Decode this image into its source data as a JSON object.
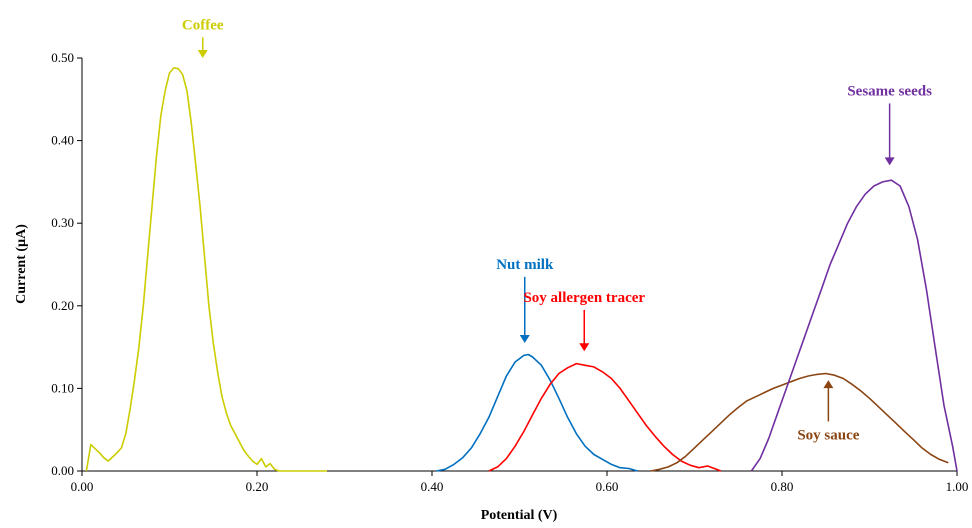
{
  "chart_data": {
    "type": "line",
    "xlabel": "Potential (V)",
    "ylabel": "Current (µA)",
    "xlim": [
      0,
      1
    ],
    "ylim": [
      0,
      0.5
    ],
    "x_ticks": [
      "0.00",
      "0.20",
      "0.40",
      "0.60",
      "0.80",
      "1.00"
    ],
    "x_tick_values": [
      0,
      0.2,
      0.4,
      0.6,
      0.8,
      1.0
    ],
    "y_ticks": [
      "0.00",
      "0.10",
      "0.20",
      "0.30",
      "0.40",
      "0.50"
    ],
    "y_tick_values": [
      0,
      0.1,
      0.2,
      0.3,
      0.4,
      0.5
    ],
    "grid": false,
    "legend": "none",
    "series": [
      {
        "name": "Coffee",
        "color": "#CCCC00",
        "x": [
          0.005,
          0.01,
          0.015,
          0.02,
          0.025,
          0.03,
          0.035,
          0.04,
          0.045,
          0.05,
          0.055,
          0.06,
          0.065,
          0.07,
          0.075,
          0.08,
          0.085,
          0.09,
          0.095,
          0.1,
          0.105,
          0.11,
          0.115,
          0.12,
          0.125,
          0.13,
          0.135,
          0.14,
          0.145,
          0.15,
          0.155,
          0.16,
          0.165,
          0.17,
          0.175,
          0.18,
          0.185,
          0.19,
          0.195,
          0.2,
          0.205,
          0.21,
          0.215,
          0.22,
          0.225,
          0.23,
          0.235,
          0.24,
          0.245,
          0.25,
          0.255,
          0.26,
          0.265,
          0.27,
          0.275,
          0.28
        ],
        "y": [
          0.0,
          0.032,
          0.027,
          0.022,
          0.016,
          0.012,
          0.017,
          0.022,
          0.028,
          0.045,
          0.075,
          0.11,
          0.15,
          0.2,
          0.26,
          0.32,
          0.38,
          0.43,
          0.46,
          0.482,
          0.488,
          0.487,
          0.48,
          0.46,
          0.42,
          0.37,
          0.32,
          0.26,
          0.2,
          0.155,
          0.12,
          0.09,
          0.07,
          0.055,
          0.045,
          0.035,
          0.025,
          0.018,
          0.012,
          0.008,
          0.015,
          0.005,
          0.009,
          0.002,
          0.0,
          0.0,
          0.0,
          0.0,
          0.0,
          0.0,
          0.0,
          0.0,
          0.0,
          0.0,
          0.0,
          0.0
        ]
      },
      {
        "name": "Nut milk",
        "color": "#0070C0",
        "x": [
          0.405,
          0.415,
          0.425,
          0.435,
          0.445,
          0.455,
          0.465,
          0.475,
          0.485,
          0.495,
          0.505,
          0.51,
          0.515,
          0.525,
          0.535,
          0.545,
          0.555,
          0.565,
          0.575,
          0.585,
          0.595,
          0.605,
          0.615,
          0.625,
          0.635
        ],
        "y": [
          0.0,
          0.002,
          0.008,
          0.016,
          0.028,
          0.045,
          0.065,
          0.09,
          0.115,
          0.132,
          0.14,
          0.141,
          0.138,
          0.128,
          0.11,
          0.088,
          0.065,
          0.045,
          0.03,
          0.02,
          0.014,
          0.008,
          0.004,
          0.003,
          0.0
        ]
      },
      {
        "name": "Soy allergen tracer",
        "color": "#FF0000",
        "x": [
          0.465,
          0.475,
          0.485,
          0.495,
          0.505,
          0.515,
          0.525,
          0.535,
          0.545,
          0.555,
          0.565,
          0.575,
          0.585,
          0.595,
          0.605,
          0.615,
          0.625,
          0.635,
          0.645,
          0.655,
          0.665,
          0.675,
          0.685,
          0.695,
          0.705,
          0.715,
          0.725,
          0.73
        ],
        "y": [
          0.0,
          0.005,
          0.015,
          0.03,
          0.048,
          0.068,
          0.088,
          0.105,
          0.118,
          0.125,
          0.13,
          0.128,
          0.126,
          0.12,
          0.112,
          0.1,
          0.085,
          0.07,
          0.055,
          0.042,
          0.03,
          0.02,
          0.012,
          0.007,
          0.004,
          0.006,
          0.002,
          0.0
        ]
      },
      {
        "name": "Soy sauce",
        "color": "#8B4513",
        "x": [
          0.65,
          0.66,
          0.67,
          0.68,
          0.69,
          0.7,
          0.71,
          0.72,
          0.73,
          0.74,
          0.75,
          0.76,
          0.77,
          0.78,
          0.79,
          0.8,
          0.81,
          0.82,
          0.83,
          0.84,
          0.85,
          0.86,
          0.87,
          0.88,
          0.89,
          0.9,
          0.91,
          0.92,
          0.93,
          0.94,
          0.95,
          0.96,
          0.97,
          0.98,
          0.99
        ],
        "y": [
          0.0,
          0.002,
          0.005,
          0.01,
          0.018,
          0.028,
          0.038,
          0.048,
          0.058,
          0.068,
          0.077,
          0.085,
          0.09,
          0.095,
          0.1,
          0.104,
          0.108,
          0.112,
          0.115,
          0.117,
          0.118,
          0.116,
          0.112,
          0.105,
          0.097,
          0.088,
          0.078,
          0.068,
          0.058,
          0.048,
          0.038,
          0.028,
          0.02,
          0.014,
          0.01
        ]
      },
      {
        "name": "Sesame seeds",
        "color": "#7030A0",
        "x": [
          0.765,
          0.775,
          0.785,
          0.795,
          0.805,
          0.815,
          0.825,
          0.835,
          0.845,
          0.855,
          0.865,
          0.875,
          0.885,
          0.895,
          0.905,
          0.915,
          0.925,
          0.935,
          0.945,
          0.955,
          0.965,
          0.975,
          0.985,
          0.995,
          1.0
        ],
        "y": [
          0.0,
          0.015,
          0.04,
          0.07,
          0.1,
          0.13,
          0.16,
          0.19,
          0.22,
          0.25,
          0.275,
          0.3,
          0.32,
          0.335,
          0.345,
          0.35,
          0.352,
          0.345,
          0.32,
          0.28,
          0.22,
          0.15,
          0.08,
          0.03,
          0.0
        ]
      }
    ],
    "annotations": [
      {
        "text": "Coffee",
        "color": "#CCCC00",
        "arrow_direction": "down",
        "tip_x": 0.138,
        "tip_y": 0.5,
        "arrow_len": 0.025
      },
      {
        "text": "Nut milk",
        "color": "#0070C0",
        "arrow_direction": "down",
        "tip_x": 0.506,
        "tip_y": 0.155,
        "arrow_len": 0.08
      },
      {
        "text": "Soy allergen tracer",
        "color": "#FF0000",
        "arrow_direction": "down",
        "tip_x": 0.574,
        "tip_y": 0.145,
        "arrow_len": 0.05
      },
      {
        "text": "Sesame seeds",
        "color": "#7030A0",
        "arrow_direction": "down",
        "tip_x": 0.923,
        "tip_y": 0.37,
        "arrow_len": 0.075
      },
      {
        "text": "Soy sauce",
        "color": "#8B4513",
        "arrow_direction": "up",
        "tip_x": 0.853,
        "tip_y": 0.11,
        "arrow_len": 0.05
      }
    ]
  }
}
